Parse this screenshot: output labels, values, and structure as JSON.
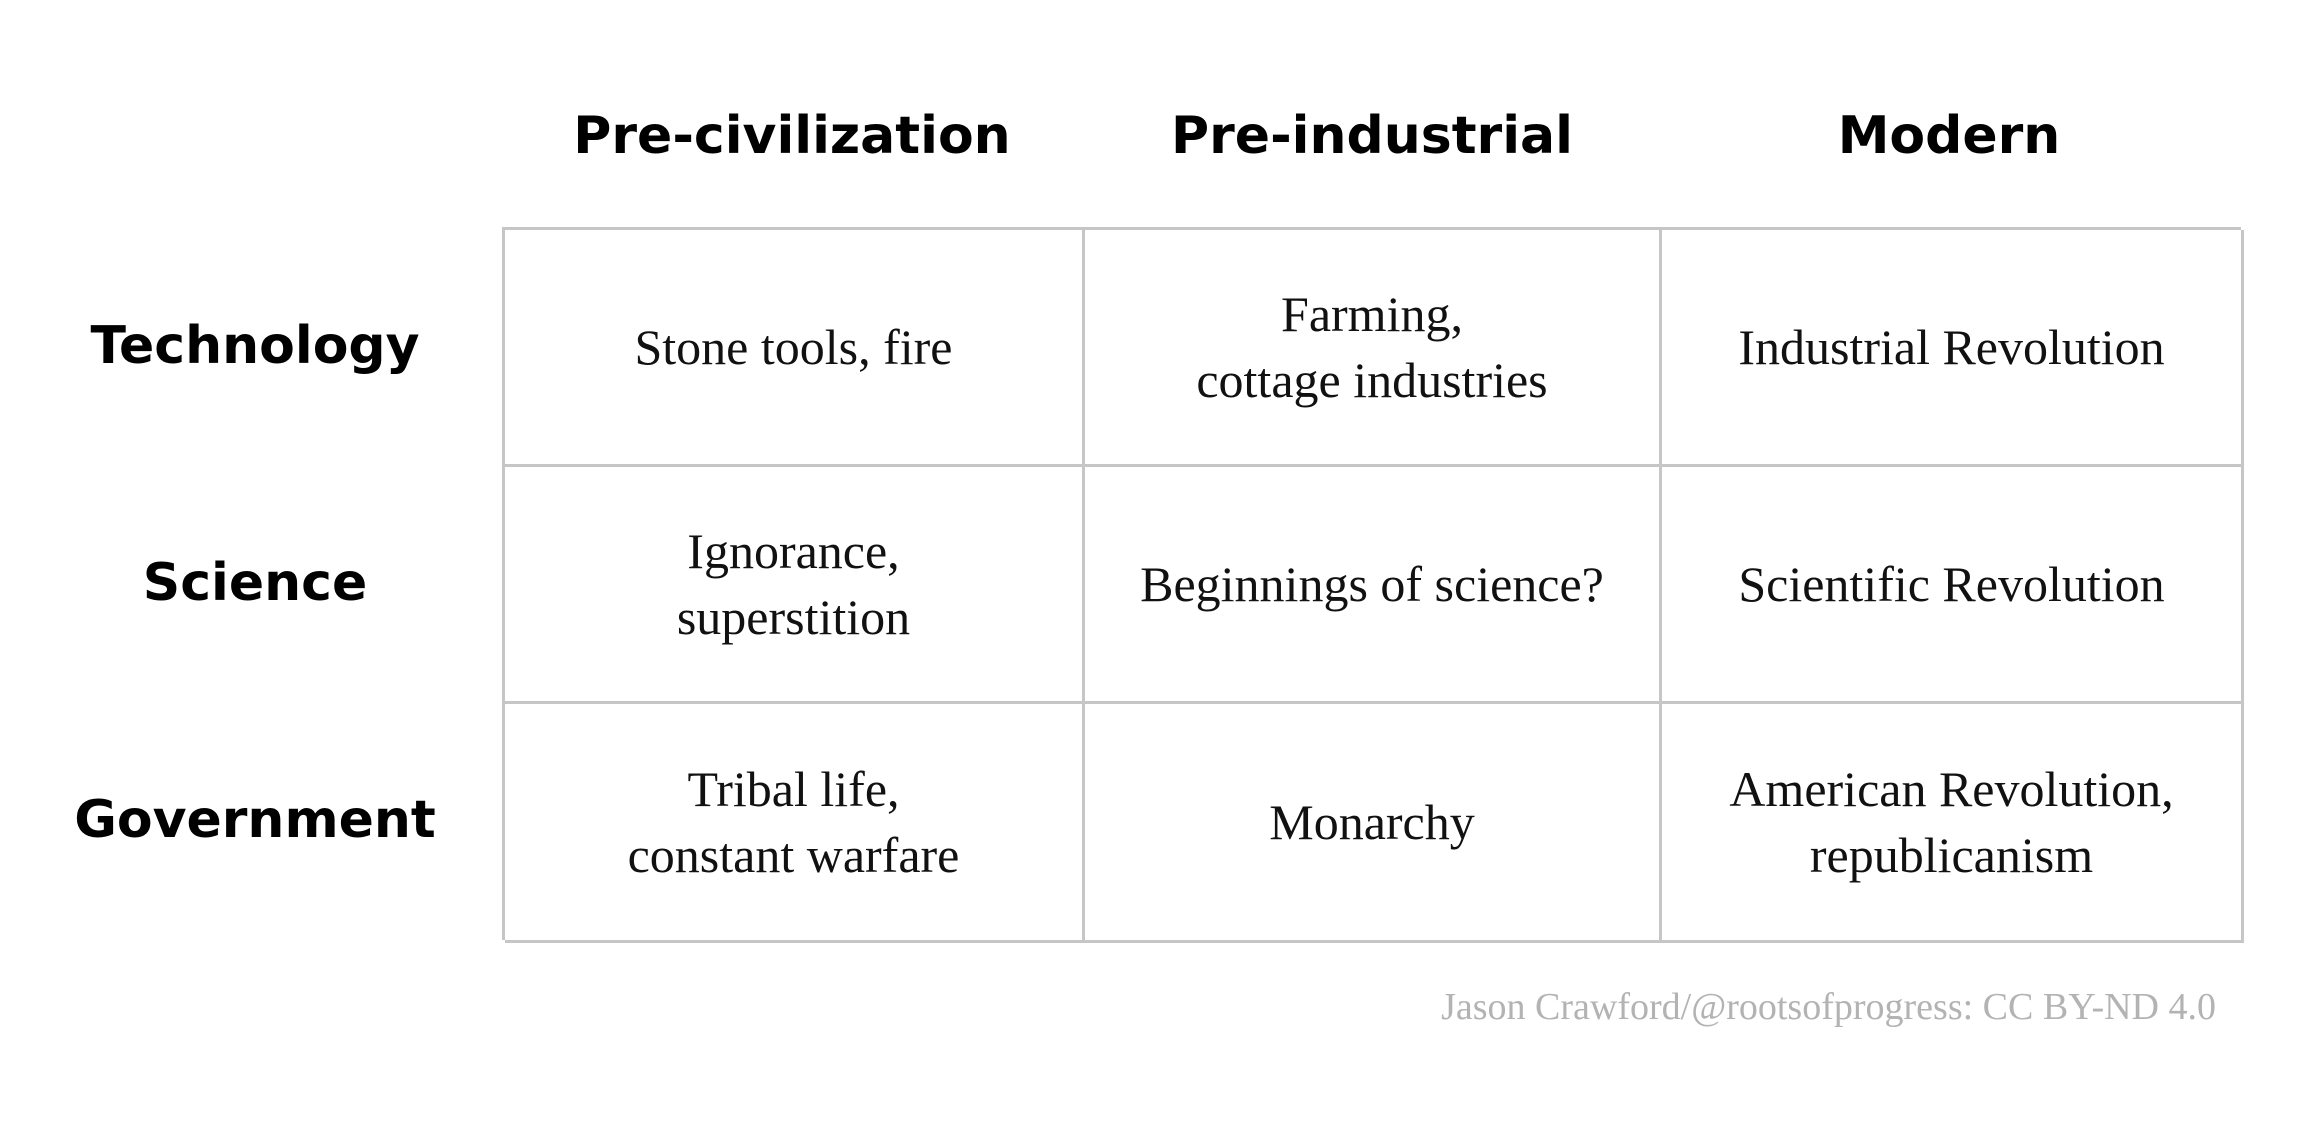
{
  "columns": [
    "Pre-civilization",
    "Pre-industrial",
    "Modern"
  ],
  "rows": [
    {
      "label": "Technology",
      "cells": [
        [
          "Stone tools, fire"
        ],
        [
          "Farming,",
          "cottage industries"
        ],
        [
          "Industrial Revolution"
        ]
      ]
    },
    {
      "label": "Science",
      "cells": [
        [
          "Ignorance,",
          "superstition"
        ],
        [
          "Beginnings of science?"
        ],
        [
          "Scientific Revolution"
        ]
      ]
    },
    {
      "label": "Government",
      "cells": [
        [
          "Tribal life,",
          "constant warfare"
        ],
        [
          "Monarchy"
        ],
        [
          "American Revolution,",
          "republicanism"
        ]
      ]
    }
  ],
  "credit": "Jason Crawford/@rootsofprogress: CC BY-ND 4.0",
  "colors": {
    "grid_line": "#c6c6c6",
    "credit_text": "#b3b3b3",
    "text": "#000000"
  }
}
